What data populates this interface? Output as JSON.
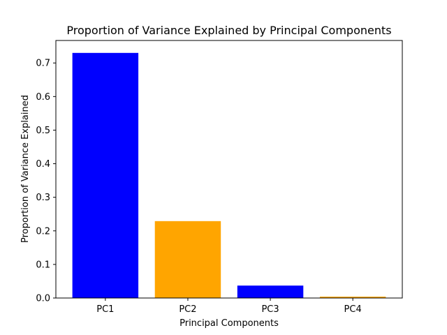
{
  "chart_data": {
    "type": "bar",
    "title": "Proportion of Variance Explained by Principal Components",
    "xlabel": "Principal Components",
    "ylabel": "Proportion of Variance Explained",
    "categories": [
      "PC1",
      "PC2",
      "PC3",
      "PC4"
    ],
    "values": [
      0.73,
      0.229,
      0.037,
      0.004
    ],
    "bar_colors": [
      "#0000ff",
      "#ffa500",
      "#0000ff",
      "#ffa500"
    ],
    "ylim": [
      0,
      0.767
    ],
    "yticks": [
      0.0,
      0.1,
      0.2,
      0.3,
      0.4,
      0.5,
      0.6,
      0.7
    ],
    "ytick_labels": [
      "0.0",
      "0.1",
      "0.2",
      "0.3",
      "0.4",
      "0.5",
      "0.6",
      "0.7"
    ],
    "grid": false,
    "legend": "none"
  }
}
